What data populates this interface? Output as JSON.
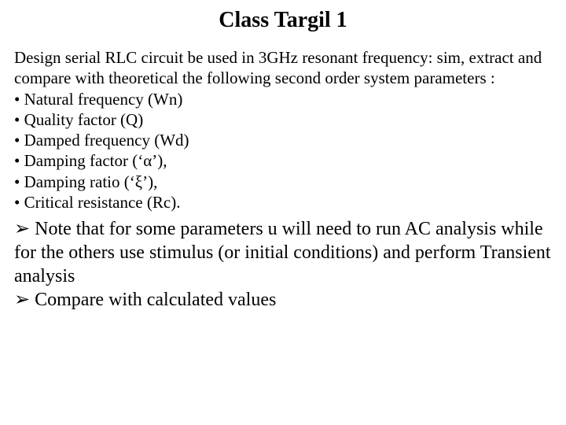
{
  "title": "Class Targil 1",
  "intro": "Design serial RLC  circuit be used in 3GHz resonant frequency: sim, extract and compare with theoretical the following second order system parameters :",
  "bullets": [
    "Natural  frequency (Wn)",
    "Quality factor (Q)",
    "Damped frequency (Wd)",
    "Damping factor (‘α’),",
    "Damping ratio (‘ξ’),",
    "Critical resistance (Rc)."
  ],
  "notes": [
    "Note that for some parameters u will need to run AC analysis while for the others use stimulus (or initial conditions) and perform Transient analysis",
    "Compare with calculated values"
  ],
  "style": {
    "background_color": "#ffffff",
    "text_color": "#000000",
    "title_fontsize": 28,
    "body_fontsize": 21,
    "notes_fontsize": 24,
    "font_family": "Times New Roman"
  }
}
